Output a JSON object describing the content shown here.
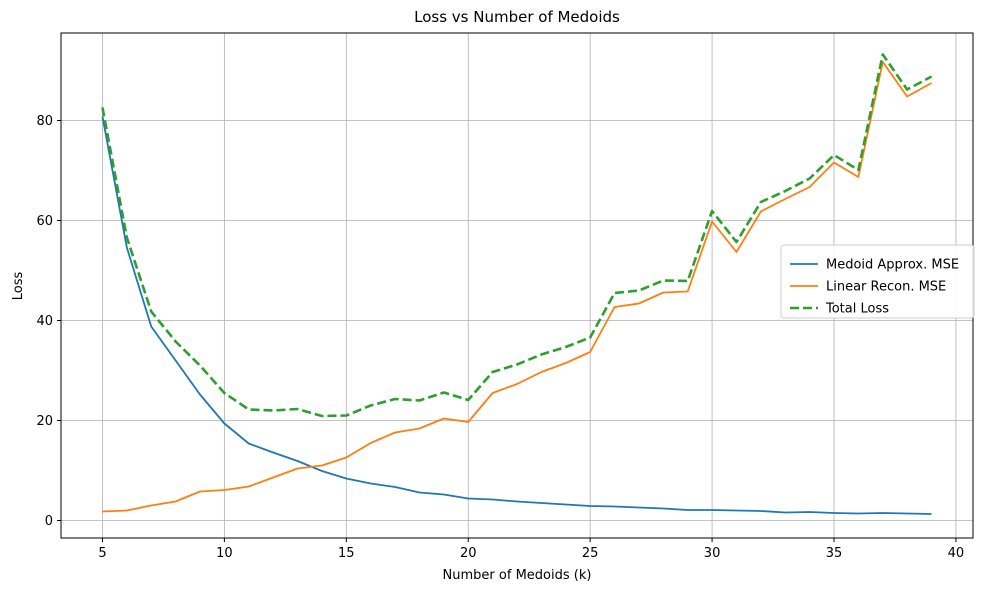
{
  "chart_data": {
    "type": "line",
    "title": "Loss vs Number of Medoids",
    "xlabel": "Number of Medoids (k)",
    "ylabel": "Loss",
    "xlim": [
      3.3,
      40.7
    ],
    "ylim": [
      -3.5,
      97.5
    ],
    "xticks": [
      5,
      10,
      15,
      20,
      25,
      30,
      35,
      40
    ],
    "yticks": [
      0,
      20,
      40,
      60,
      80
    ],
    "grid": true,
    "legend_position": "center-right",
    "x": [
      5,
      6,
      7,
      8,
      9,
      10,
      11,
      12,
      13,
      14,
      15,
      16,
      17,
      18,
      19,
      20,
      21,
      22,
      23,
      24,
      25,
      26,
      27,
      28,
      29,
      30,
      31,
      32,
      33,
      34,
      35,
      36,
      37,
      38,
      39
    ],
    "series": [
      {
        "name": "Medoid Approx. MSE",
        "color": "#1f77b4",
        "dash": "solid",
        "values": [
          80.8,
          54.6,
          38.8,
          32.0,
          25.2,
          19.4,
          15.4,
          13.6,
          11.9,
          9.9,
          8.4,
          7.4,
          6.7,
          5.6,
          5.2,
          4.4,
          4.2,
          3.8,
          3.5,
          3.2,
          2.9,
          2.8,
          2.6,
          2.4,
          2.1,
          2.1,
          2.0,
          1.9,
          1.6,
          1.7,
          1.5,
          1.4,
          1.5,
          1.4,
          1.3
        ]
      },
      {
        "name": "Linear Recon. MSE",
        "color": "#ff7f0e",
        "dash": "solid",
        "values": [
          1.8,
          2.0,
          3.0,
          3.8,
          5.8,
          6.1,
          6.8,
          8.6,
          10.4,
          11.0,
          12.6,
          15.5,
          17.6,
          18.4,
          20.4,
          19.7,
          25.5,
          27.3,
          29.7,
          31.5,
          33.7,
          42.7,
          43.4,
          45.6,
          45.8,
          59.8,
          53.7,
          61.8,
          64.3,
          66.7,
          71.6,
          68.7,
          91.7,
          84.8,
          87.5
        ]
      },
      {
        "name": "Total Loss",
        "color": "#2ca02c",
        "dash": "dashed",
        "values": [
          82.6,
          56.6,
          41.8,
          35.8,
          31.0,
          25.5,
          22.2,
          22.0,
          22.3,
          20.9,
          21.0,
          23.0,
          24.3,
          24.0,
          25.6,
          24.1,
          29.7,
          31.2,
          33.2,
          34.7,
          36.6,
          45.5,
          46.0,
          48.0,
          47.9,
          61.9,
          55.7,
          63.7,
          65.9,
          68.4,
          73.1,
          70.1,
          93.2,
          86.2,
          88.8
        ]
      }
    ]
  }
}
